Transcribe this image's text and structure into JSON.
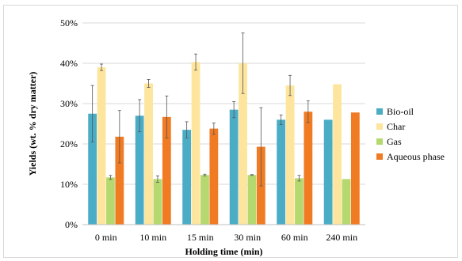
{
  "chart_data": {
    "type": "bar",
    "title": "",
    "xlabel": "Holding time (min)",
    "ylabel": "Yields (wt. % dry matter)",
    "ylim": [
      0,
      50
    ],
    "y_ticks": [
      "0%",
      "10%",
      "20%",
      "30%",
      "40%",
      "50%"
    ],
    "categories": [
      "0 min",
      "10 min",
      "15 min",
      "30 min",
      "60 min",
      "240 min"
    ],
    "grid": true,
    "legend_position": "right",
    "series": [
      {
        "name": "Bio-oil",
        "color": "#4bacc6",
        "values": [
          27.5,
          27.0,
          23.5,
          28.5,
          26.0,
          26.0
        ],
        "errors": [
          7.0,
          4.0,
          2.0,
          2.0,
          1.2,
          0
        ]
      },
      {
        "name": "Char",
        "color": "#fde59d",
        "values": [
          39.0,
          35.0,
          40.3,
          40.0,
          34.5,
          34.8
        ],
        "errors": [
          0.8,
          1.0,
          2.0,
          7.5,
          2.5,
          0
        ]
      },
      {
        "name": "Gas",
        "color": "#b5d96f",
        "values": [
          11.7,
          11.3,
          12.3,
          12.3,
          11.5,
          11.3
        ],
        "errors": [
          0.5,
          0.8,
          0.2,
          0.1,
          0.7,
          0
        ]
      },
      {
        "name": "Aqueous phase",
        "color": "#f07b23",
        "values": [
          21.8,
          26.7,
          23.8,
          19.3,
          28.0,
          27.8
        ],
        "errors": [
          6.5,
          5.2,
          1.4,
          9.7,
          2.7,
          0
        ]
      }
    ]
  }
}
